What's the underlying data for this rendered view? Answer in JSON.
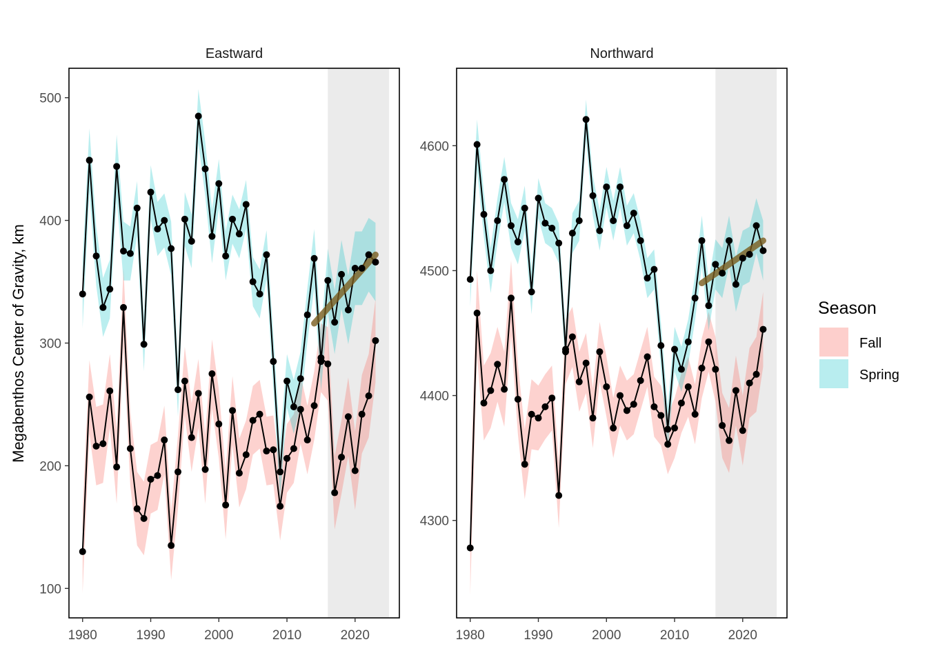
{
  "y_axis_title": "Megabenthos  Center of Gravity, km",
  "legend": {
    "title": "Season",
    "items": [
      {
        "label": "Fall",
        "color": "#F8766D"
      },
      {
        "label": "Spring",
        "color": "#00BFC4"
      }
    ]
  },
  "colors": {
    "fall_ribbon": "#F8766D",
    "spring_ribbon": "#00BFC4",
    "trend_line": "#7B5C1E",
    "recent_shade": "#EBEBEB",
    "series_line": "#000000"
  },
  "chart_data": [
    {
      "type": "line",
      "title": "Eastward",
      "xlim": [
        1978.0,
        2026.5
      ],
      "ylim": [
        76,
        524
      ],
      "x_ticks": [
        1980,
        1990,
        2000,
        2010,
        2020
      ],
      "y_ticks": [
        100,
        200,
        300,
        400,
        500
      ],
      "shaded_x_range": [
        2016,
        2025
      ],
      "series": [
        {
          "name": "Fall",
          "x": [
            1980,
            1981,
            1982,
            1983,
            1984,
            1985,
            1986,
            1987,
            1988,
            1989,
            1990,
            1991,
            1992,
            1993,
            1994,
            1995,
            1996,
            1997,
            1998,
            1999,
            2000,
            2001,
            2002,
            2003,
            2004,
            2005,
            2006,
            2007,
            2008,
            2009,
            2010,
            2011,
            2012,
            2013,
            2014,
            2015,
            2016,
            2017,
            2018,
            2019,
            2020,
            2021,
            2022,
            2023
          ],
          "y": [
            130,
            256,
            216,
            218,
            261,
            199,
            329,
            214,
            165,
            157,
            189,
            192,
            221,
            135,
            195,
            269,
            223,
            259,
            197,
            275,
            234,
            168,
            245,
            194,
            209,
            237,
            242,
            212,
            213,
            167,
            206,
            214,
            246,
            221,
            249,
            288,
            283,
            178,
            207,
            240,
            196,
            242,
            257,
            302
          ],
          "band": [
            34,
            30,
            32,
            32,
            30,
            30,
            32,
            30,
            30,
            30,
            28,
            28,
            28,
            28,
            30,
            28,
            28,
            28,
            28,
            28,
            28,
            28,
            28,
            28,
            28,
            28,
            28,
            28,
            28,
            28,
            28,
            28,
            28,
            28,
            28,
            28,
            30,
            30,
            30,
            32,
            32,
            32,
            34,
            34
          ]
        },
        {
          "name": "Spring",
          "x": [
            1980,
            1981,
            1982,
            1983,
            1984,
            1985,
            1986,
            1987,
            1988,
            1989,
            1990,
            1991,
            1992,
            1993,
            1994,
            1995,
            1996,
            1997,
            1998,
            1999,
            2000,
            2001,
            2002,
            2003,
            2004,
            2005,
            2006,
            2007,
            2008,
            2009,
            2010,
            2011,
            2012,
            2013,
            2014,
            2015,
            2016,
            2017,
            2018,
            2019,
            2020,
            2021,
            2022,
            2023
          ],
          "y": [
            340,
            449,
            371,
            329,
            344,
            444,
            375,
            373,
            410,
            299,
            423,
            393,
            400,
            377,
            262,
            401,
            383,
            485,
            442,
            387,
            430,
            371,
            401,
            389,
            413,
            350,
            340,
            372,
            285,
            195,
            269,
            248,
            271,
            323,
            369,
            285,
            351,
            317,
            356,
            327,
            361,
            361,
            372,
            366
          ],
          "band": [
            28,
            26,
            24,
            24,
            24,
            26,
            24,
            22,
            22,
            22,
            22,
            22,
            22,
            22,
            22,
            22,
            22,
            22,
            22,
            22,
            20,
            20,
            20,
            20,
            20,
            20,
            20,
            20,
            22,
            24,
            22,
            22,
            22,
            22,
            24,
            24,
            26,
            26,
            28,
            28,
            30,
            30,
            30,
            32
          ]
        }
      ],
      "trend": {
        "x": [
          2014,
          2023
        ],
        "y": [
          316,
          372
        ]
      }
    },
    {
      "type": "line",
      "title": "Northward",
      "xlim": [
        1978.0,
        2026.5
      ],
      "ylim": [
        4222,
        4662
      ],
      "x_ticks": [
        1980,
        1990,
        2000,
        2010,
        2020
      ],
      "y_ticks": [
        4300,
        4400,
        4500,
        4600
      ],
      "shaded_x_range": [
        2016,
        2025
      ],
      "series": [
        {
          "name": "Fall",
          "x": [
            1980,
            1981,
            1982,
            1983,
            1984,
            1985,
            1986,
            1987,
            1988,
            1989,
            1990,
            1991,
            1992,
            1993,
            1994,
            1995,
            1996,
            1997,
            1998,
            1999,
            2000,
            2001,
            2002,
            2003,
            2004,
            2005,
            2006,
            2007,
            2008,
            2009,
            2010,
            2011,
            2012,
            2013,
            2014,
            2015,
            2016,
            2017,
            2018,
            2019,
            2020,
            2021,
            2022,
            2023
          ],
          "y": [
            4278,
            4466,
            4394,
            4404,
            4425,
            4405,
            4478,
            4397,
            4345,
            4385,
            4382,
            4391,
            4398,
            4320,
            4435,
            4447,
            4411,
            4426,
            4382,
            4435,
            4407,
            4374,
            4400,
            4388,
            4393,
            4412,
            4431,
            4391,
            4384,
            4361,
            4374,
            4394,
            4407,
            4385,
            4422,
            4443,
            4421,
            4376,
            4364,
            4404,
            4372,
            4410,
            4417,
            4453
          ],
          "band": [
            38,
            34,
            30,
            30,
            30,
            30,
            30,
            28,
            28,
            28,
            26,
            26,
            26,
            26,
            26,
            24,
            24,
            24,
            24,
            24,
            24,
            24,
            24,
            24,
            24,
            24,
            24,
            24,
            24,
            24,
            24,
            24,
            24,
            24,
            24,
            24,
            26,
            26,
            26,
            28,
            28,
            28,
            30,
            30
          ]
        },
        {
          "name": "Spring",
          "x": [
            1980,
            1981,
            1982,
            1983,
            1984,
            1985,
            1986,
            1987,
            1988,
            1989,
            1990,
            1991,
            1992,
            1993,
            1994,
            1995,
            1996,
            1997,
            1998,
            1999,
            2000,
            2001,
            2002,
            2003,
            2004,
            2005,
            2006,
            2007,
            2008,
            2009,
            2010,
            2011,
            2012,
            2013,
            2014,
            2015,
            2016,
            2017,
            2018,
            2019,
            2020,
            2021,
            2022,
            2023
          ],
          "y": [
            4493,
            4601,
            4545,
            4500,
            4540,
            4573,
            4536,
            4523,
            4550,
            4483,
            4558,
            4538,
            4534,
            4522,
            4437,
            4530,
            4540,
            4621,
            4560,
            4532,
            4567,
            4540,
            4567,
            4536,
            4546,
            4524,
            4494,
            4501,
            4440,
            4373,
            4437,
            4421,
            4443,
            4478,
            4524,
            4472,
            4505,
            4498,
            4524,
            4489,
            4510,
            4513,
            4536,
            4516
          ],
          "band": [
            22,
            20,
            18,
            18,
            18,
            18,
            18,
            18,
            18,
            18,
            16,
            16,
            16,
            16,
            16,
            16,
            16,
            16,
            16,
            16,
            16,
            16,
            16,
            16,
            16,
            16,
            16,
            16,
            18,
            18,
            18,
            18,
            18,
            18,
            20,
            20,
            20,
            20,
            20,
            22,
            22,
            22,
            22,
            24
          ]
        }
      ],
      "trend": {
        "x": [
          2014,
          2023
        ],
        "y": [
          4490,
          4524
        ]
      }
    }
  ]
}
